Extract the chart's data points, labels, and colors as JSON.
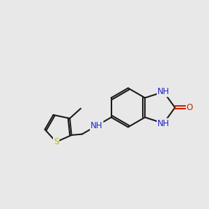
{
  "background_color": "#e8e8e8",
  "bond_color": "#1a1a1a",
  "nitrogen_color": "#2020cc",
  "oxygen_color": "#cc2000",
  "sulfur_color": "#b8b800",
  "line_width": 1.5,
  "fig_width": 3.0,
  "fig_height": 3.0,
  "dpi": 100,
  "font_size": 8.5,
  "xlim": [
    0,
    10
  ],
  "ylim": [
    0,
    10
  ]
}
